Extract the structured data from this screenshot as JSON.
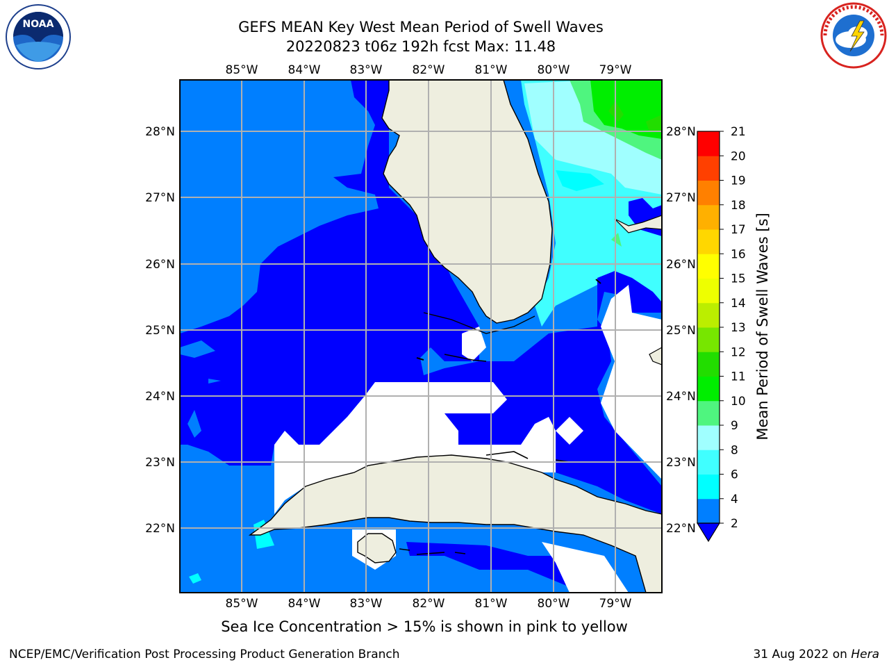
{
  "header": {
    "title_line1": "GEFS MEAN Key West Mean Period of Swell Waves",
    "title_line2": "20220823 t06z 192h fcst   Max: 11.48"
  },
  "logos": {
    "left": {
      "icon": "noaa-logo",
      "text": "NOAA"
    },
    "right": {
      "icon": "national-weather-service-logo",
      "text": "NATIONAL WEATHER SERVICE"
    }
  },
  "map": {
    "lon_labels": [
      "85°W",
      "84°W",
      "83°W",
      "82°W",
      "81°W",
      "80°W",
      "79°W"
    ],
    "lat_labels": [
      "28°N",
      "27°N",
      "26°N",
      "25°N",
      "24°N",
      "23°N",
      "22°N"
    ],
    "colors": {
      "land": "#eeeedf",
      "grid": "#b0b0b0",
      "no_data": "#ffffff"
    }
  },
  "colorbar": {
    "label": "Mean Period of Swell Waves [s]",
    "ticks": [
      "2",
      "4",
      "6",
      "8",
      "9",
      "10",
      "11",
      "12",
      "13",
      "14",
      "15",
      "16",
      "17",
      "18",
      "19",
      "20",
      "21"
    ],
    "colors": [
      "#0000ff",
      "#007fff",
      "#00ffff",
      "#40ffff",
      "#a0ffff",
      "#4ff57f",
      "#00ee00",
      "#22dd00",
      "#77e600",
      "#bbee00",
      "#eeff00",
      "#ffff00",
      "#ffd700",
      "#ffb000",
      "#ff8000",
      "#ff4000",
      "#ff0000"
    ]
  },
  "notes": {
    "ice": "Sea Ice Concentration > 15% is shown in pink to yellow"
  },
  "footer": {
    "left": "NCEP/EMC/Verification Post Processing Product Generation Branch",
    "right_date": "31 Aug 2022 on ",
    "right_host": "Hera"
  }
}
